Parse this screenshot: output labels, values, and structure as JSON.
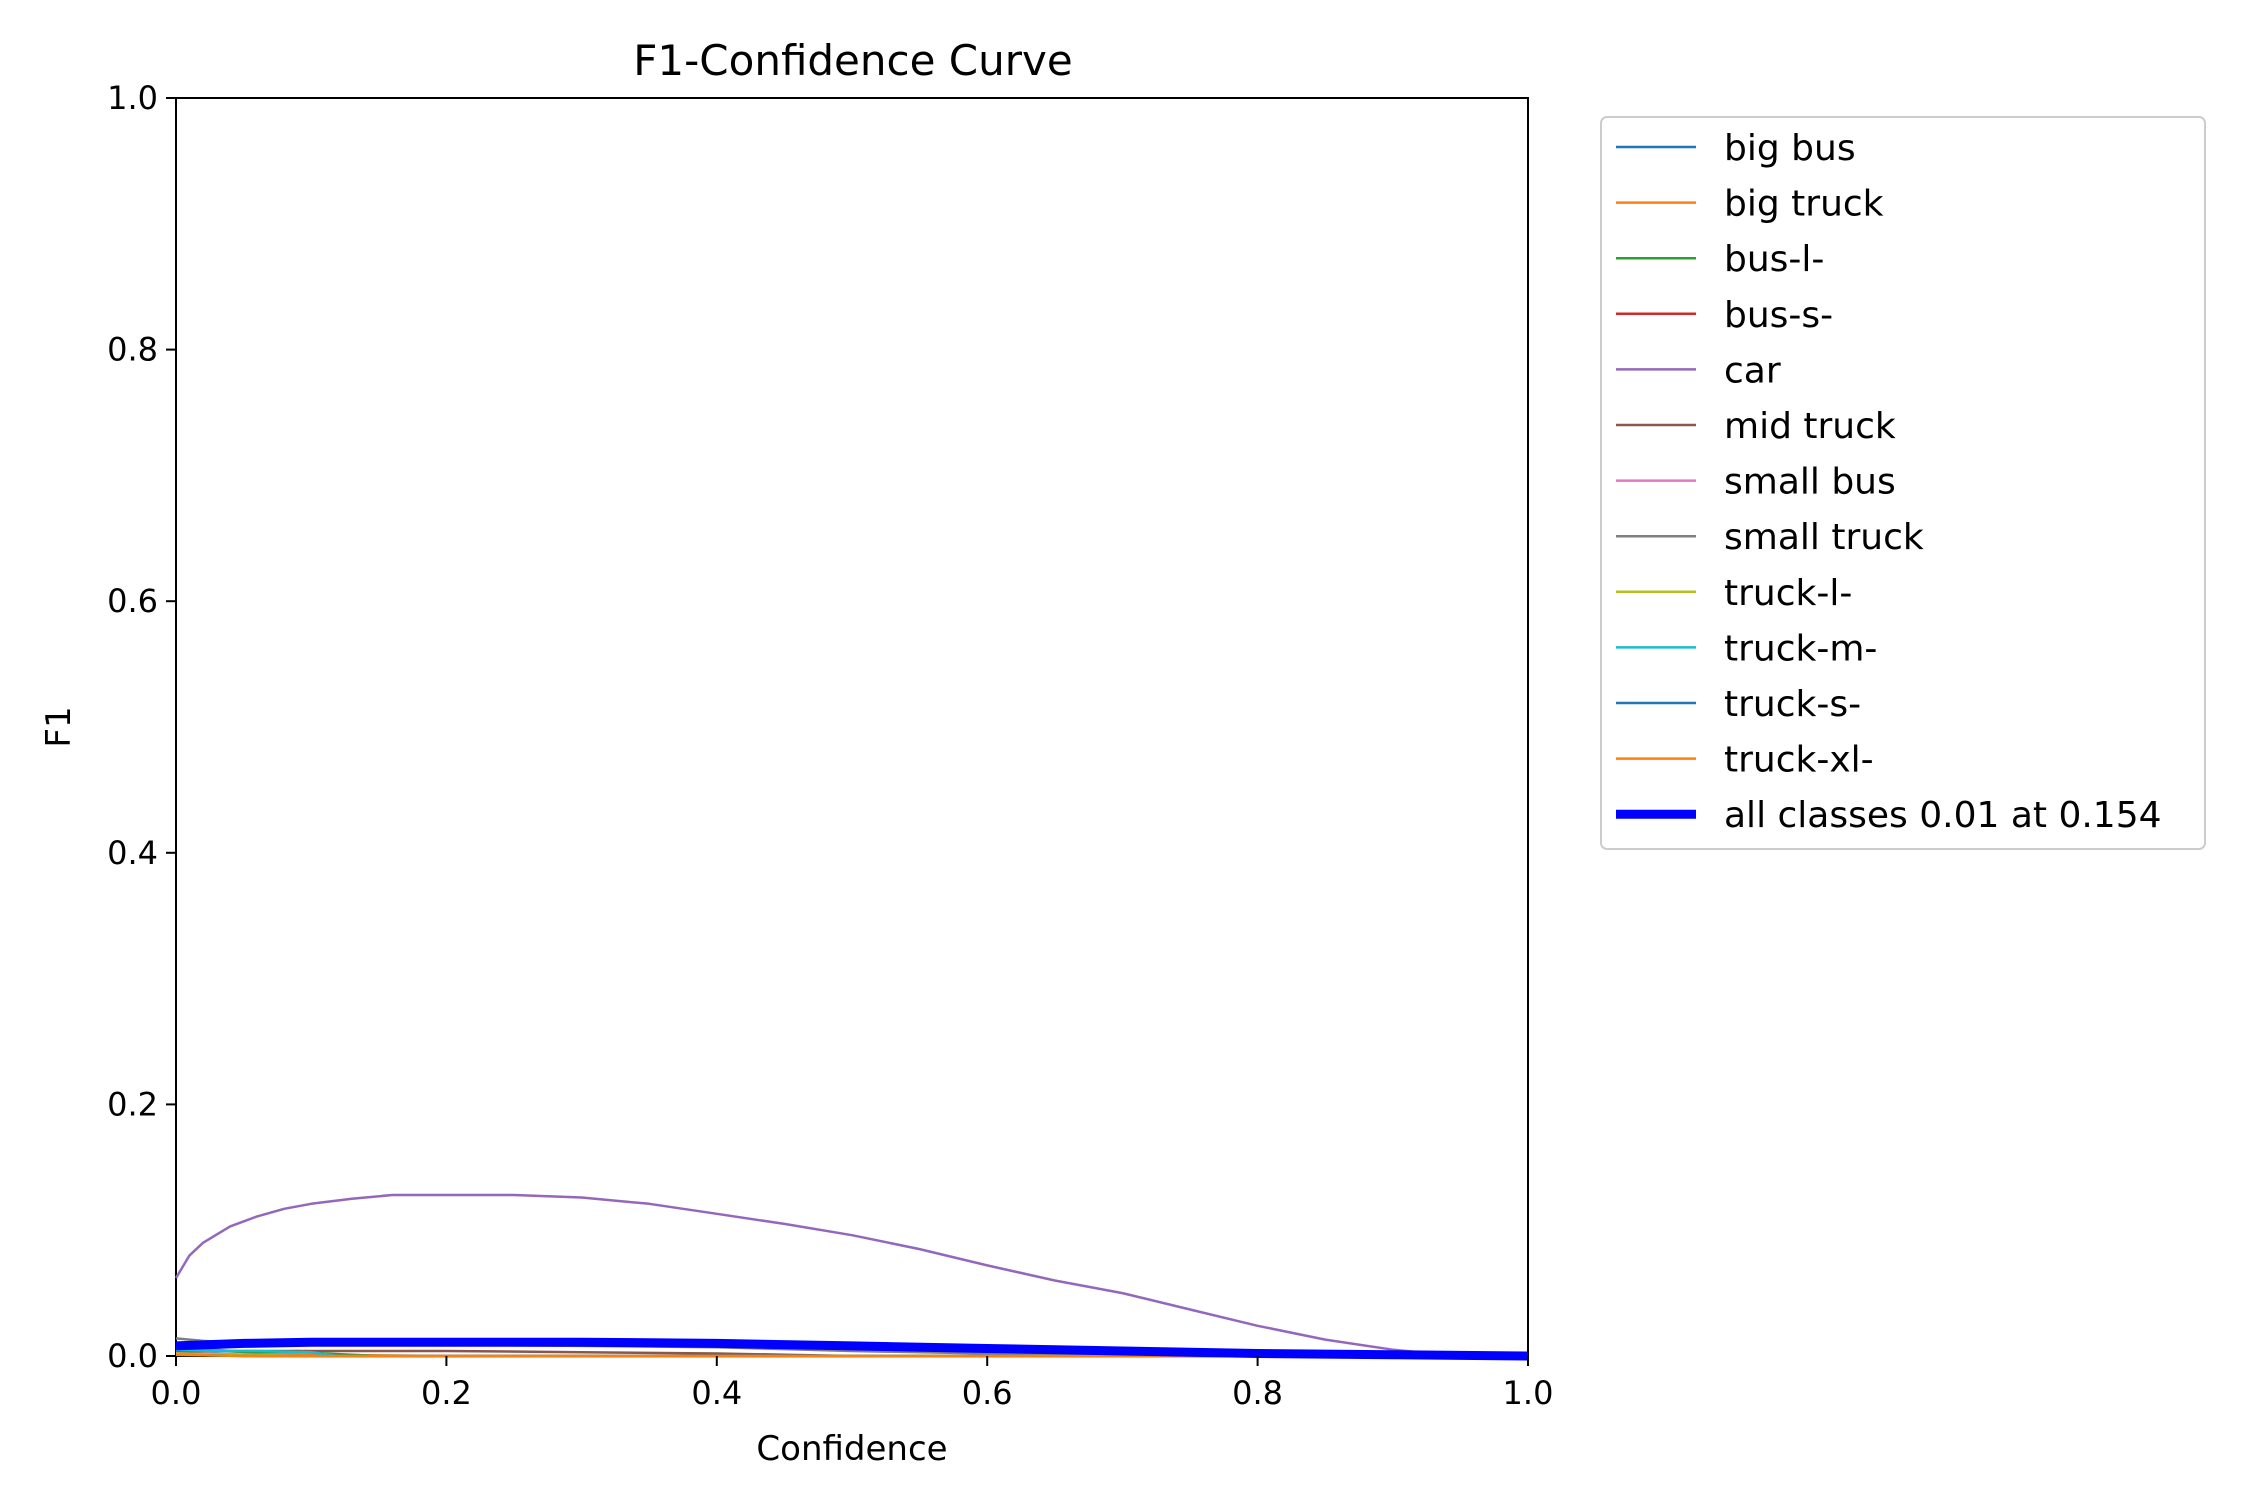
{
  "chart_data": {
    "type": "line",
    "title": "F1-Confidence Curve",
    "xlabel": "Confidence",
    "ylabel": "F1",
    "xlim": [
      0,
      1
    ],
    "ylim": [
      0,
      1
    ],
    "xticks": [
      "0.0",
      "0.2",
      "0.4",
      "0.6",
      "0.8",
      "1.0"
    ],
    "yticks": [
      "0.0",
      "0.2",
      "0.4",
      "0.6",
      "0.8",
      "1.0"
    ],
    "grid": false,
    "legend_position": "outside-top-right",
    "series": [
      {
        "name": "big bus",
        "color": "#1f77b4",
        "x": [
          0,
          0.02,
          0.05,
          0.1,
          0.2,
          1.0
        ],
        "y": [
          0.003,
          0.002,
          0.001,
          0.0,
          0.0,
          0.0
        ]
      },
      {
        "name": "big truck",
        "color": "#ff7f0e",
        "x": [
          0,
          0.02,
          0.05,
          0.1,
          0.2,
          1.0
        ],
        "y": [
          0.008,
          0.006,
          0.003,
          0.001,
          0.0,
          0.0
        ]
      },
      {
        "name": "bus-l-",
        "color": "#2ca02c",
        "x": [
          0,
          0.03,
          0.06,
          0.09,
          0.11,
          0.15,
          1.0
        ],
        "y": [
          0.006,
          0.004,
          0.003,
          0.004,
          0.002,
          0.0,
          0.0
        ]
      },
      {
        "name": "bus-s-",
        "color": "#d62728",
        "x": [
          0,
          0.03,
          0.06,
          0.1,
          1.0
        ],
        "y": [
          0.002,
          0.001,
          0.0,
          0.0,
          0.0
        ]
      },
      {
        "name": "car",
        "color": "#9467bd",
        "x": [
          0.0,
          0.01,
          0.02,
          0.04,
          0.06,
          0.08,
          0.1,
          0.13,
          0.16,
          0.2,
          0.25,
          0.3,
          0.35,
          0.4,
          0.45,
          0.5,
          0.55,
          0.6,
          0.65,
          0.7,
          0.75,
          0.8,
          0.85,
          0.9,
          0.93,
          0.96,
          1.0
        ],
        "y": [
          0.062,
          0.08,
          0.09,
          0.103,
          0.111,
          0.117,
          0.121,
          0.125,
          0.128,
          0.128,
          0.128,
          0.126,
          0.121,
          0.113,
          0.105,
          0.096,
          0.085,
          0.072,
          0.06,
          0.05,
          0.037,
          0.024,
          0.013,
          0.005,
          0.002,
          0.001,
          0.0
        ]
      },
      {
        "name": "mid truck",
        "color": "#8c564b",
        "x": [
          0,
          0.1,
          0.2,
          0.3,
          0.4,
          0.45,
          0.5,
          1.0
        ],
        "y": [
          0.004,
          0.004,
          0.004,
          0.003,
          0.002,
          0.001,
          0.0,
          0.0
        ]
      },
      {
        "name": "small bus",
        "color": "#e377c2",
        "x": [
          0,
          0.05,
          0.1,
          1.0
        ],
        "y": [
          0.002,
          0.001,
          0.0,
          0.0
        ]
      },
      {
        "name": "small truck",
        "color": "#7f7f7f",
        "x": [
          0,
          0.02,
          0.05,
          0.1,
          0.2,
          0.3,
          0.4,
          0.5,
          0.6,
          0.7,
          1.0
        ],
        "y": [
          0.014,
          0.012,
          0.01,
          0.01,
          0.009,
          0.008,
          0.007,
          0.004,
          0.002,
          0.001,
          0.0
        ]
      },
      {
        "name": "truck-l-",
        "color": "#bcbd22",
        "x": [
          0,
          0.05,
          0.1,
          1.0
        ],
        "y": [
          0.002,
          0.001,
          0.0,
          0.0
        ]
      },
      {
        "name": "truck-m-",
        "color": "#17becf",
        "x": [
          0,
          0.03,
          0.06,
          0.1,
          0.12,
          1.0
        ],
        "y": [
          0.005,
          0.004,
          0.004,
          0.003,
          0.0,
          0.0
        ]
      },
      {
        "name": "truck-s-",
        "color": "#1f77b4",
        "x": [
          0,
          0.05,
          0.1,
          1.0
        ],
        "y": [
          0.001,
          0.0,
          0.0,
          0.0
        ]
      },
      {
        "name": "truck-xl-",
        "color": "#ff7f0e",
        "x": [
          0,
          0.05,
          0.1,
          1.0
        ],
        "y": [
          0.001,
          0.0,
          0.0,
          0.0
        ]
      },
      {
        "name": "all classes 0.01 at 0.154",
        "color": "#0000ff",
        "bold": true,
        "x": [
          0.0,
          0.05,
          0.1,
          0.154,
          0.2,
          0.3,
          0.4,
          0.5,
          0.6,
          0.7,
          0.8,
          0.9,
          1.0
        ],
        "y": [
          0.008,
          0.01,
          0.011,
          0.011,
          0.011,
          0.011,
          0.01,
          0.008,
          0.006,
          0.004,
          0.002,
          0.001,
          0.0
        ]
      }
    ]
  }
}
